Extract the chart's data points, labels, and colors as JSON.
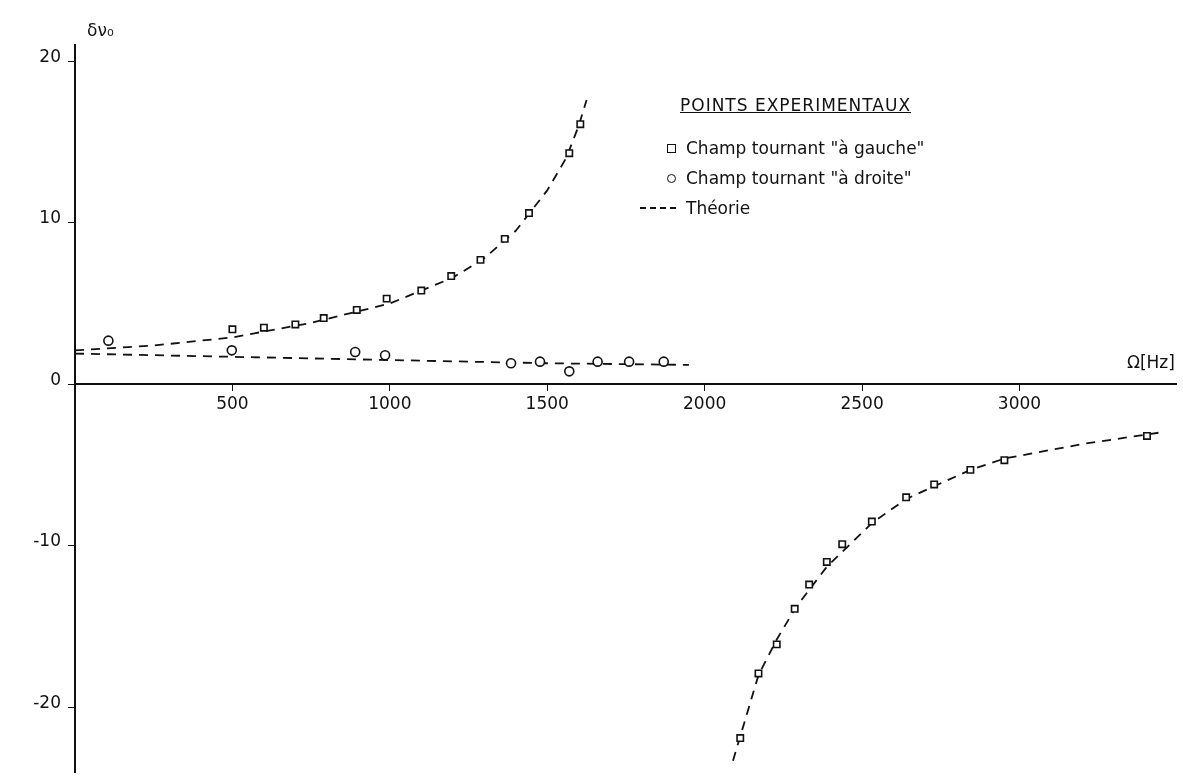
{
  "chart_data": {
    "type": "scatter",
    "xlabel": "Ω[Hz]",
    "ylabel": "δν₀",
    "legend_title": "POINTS EXPERIMENTAUX",
    "legend": "top right",
    "grid": false,
    "xlim": [
      0,
      3500
    ],
    "xticks": [
      500,
      1000,
      1500,
      2000,
      2500,
      3000
    ],
    "ylim": [
      -24,
      21
    ],
    "yticks": [
      -20,
      -10,
      0,
      10,
      20
    ],
    "series": [
      {
        "name": "Champ tournant \"à gauche\"",
        "marker": "square",
        "color": "#111111",
        "x": [
          500,
          600,
          700,
          790,
          895,
          990,
          1100,
          1195,
          1288,
          1365,
          1442,
          1570,
          1605,
          2113,
          2171,
          2229,
          2286,
          2332,
          2388,
          2437,
          2531,
          2640,
          2729,
          2844,
          2952,
          3405
        ],
        "values": [
          3.4,
          3.5,
          3.7,
          4.1,
          4.6,
          5.3,
          5.8,
          6.7,
          7.7,
          9.0,
          10.6,
          14.3,
          16.1,
          -21.9,
          -17.9,
          -16.1,
          -13.9,
          -12.4,
          -11.0,
          -9.9,
          -8.5,
          -7.0,
          -6.2,
          -5.3,
          -4.7,
          -3.2
        ]
      },
      {
        "name": "Champ tournant \"à droite\"",
        "marker": "circle",
        "color": "#111111",
        "x": [
          106,
          498,
          890,
          985,
          1385,
          1477,
          1570,
          1660,
          1760,
          1870
        ],
        "values": [
          2.7,
          2.1,
          2.0,
          1.8,
          1.3,
          1.4,
          0.8,
          1.4,
          1.4,
          1.4
        ]
      },
      {
        "name": "Théorie",
        "type": "line",
        "marker": "none",
        "line_style": "dashed",
        "color": "#111111",
        "x": [
          0,
          250,
          500,
          750,
          1000,
          1200,
          1300,
          1400,
          1500,
          1560,
          1600,
          1625
        ],
        "values": [
          2.1,
          2.4,
          2.9,
          3.8,
          5.0,
          6.6,
          7.8,
          9.5,
          12,
          14,
          16,
          17.6
        ]
      },
      {
        "type": "line",
        "marker": "none",
        "line_style": "dashed",
        "color": "#111111",
        "x": [
          0,
          500,
          1000,
          1500,
          1950
        ],
        "values": [
          1.9,
          1.7,
          1.5,
          1.3,
          1.2
        ]
      },
      {
        "type": "line",
        "marker": "none",
        "line_style": "dashed",
        "color": "#111111",
        "x": [
          2090,
          2113,
          2171,
          2229,
          2290,
          2388,
          2531,
          2640,
          2844,
          2952,
          3200,
          3442
        ],
        "values": [
          -23.3,
          -21.8,
          -18,
          -15.8,
          -13.8,
          -11.3,
          -8.6,
          -7.1,
          -5.3,
          -4.6,
          -3.7,
          -3.0
        ]
      }
    ]
  }
}
